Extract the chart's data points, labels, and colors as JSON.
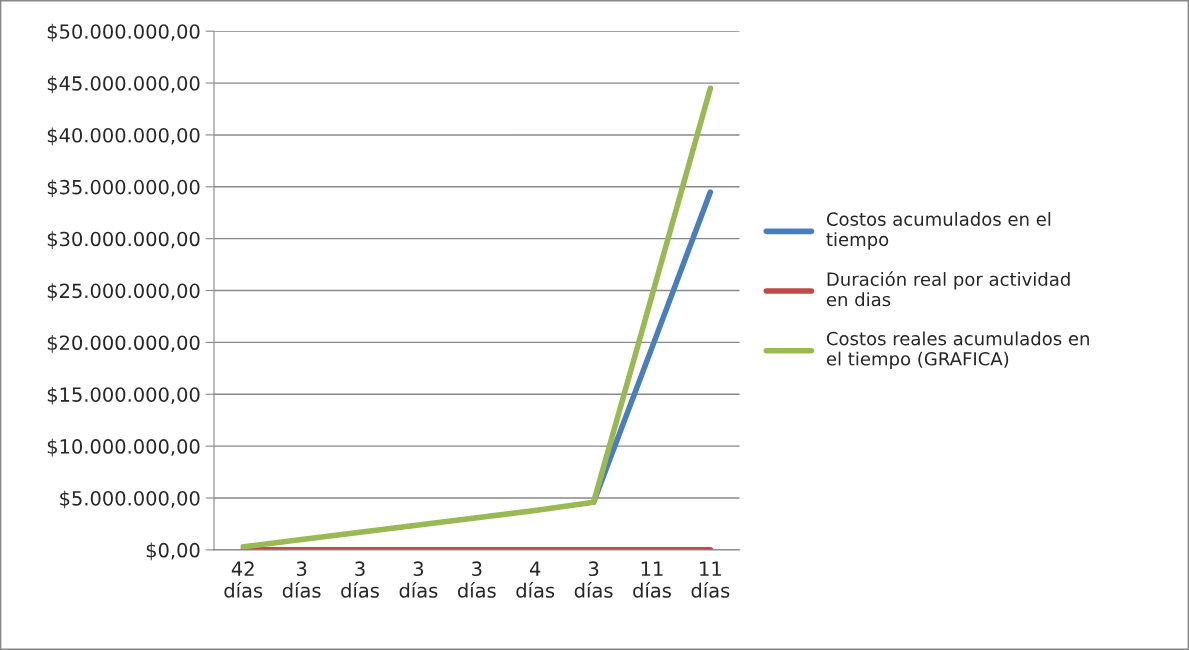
{
  "chart_data": {
    "type": "line",
    "categories": [
      "42 días",
      "3 días",
      "3 días",
      "3 días",
      "3 días",
      "4 días",
      "3 días",
      "11 días",
      "11 días"
    ],
    "series": [
      {
        "name": "Costos acumulados en el tiempo",
        "color": "#4a7ebb",
        "values": [
          null,
          null,
          null,
          null,
          null,
          null,
          4600000,
          19500000,
          34500000
        ]
      },
      {
        "name": "Duración real por actividad en dias",
        "color": "#be4b48",
        "values": [
          0,
          0,
          0,
          0,
          0,
          0,
          0,
          0,
          0
        ]
      },
      {
        "name": "Costos reales acumulados en el tiempo (GRAFICA)",
        "color": "#98b954",
        "values": [
          300000,
          1000000,
          1700000,
          2400000,
          3100000,
          3800000,
          4600000,
          24500000,
          44500000
        ]
      }
    ],
    "ylim": [
      0,
      50000000
    ],
    "yticks": [
      {
        "value": 0,
        "label": "$0,00"
      },
      {
        "value": 5000000,
        "label": "$5.000.000,00"
      },
      {
        "value": 10000000,
        "label": "$10.000.000,00"
      },
      {
        "value": 15000000,
        "label": "$15.000.000,00"
      },
      {
        "value": 20000000,
        "label": "$20.000.000,00"
      },
      {
        "value": 25000000,
        "label": "$25.000.000,00"
      },
      {
        "value": 30000000,
        "label": "$30.000.000,00"
      },
      {
        "value": 35000000,
        "label": "$35.000.000,00"
      },
      {
        "value": 40000000,
        "label": "$40.000.000,00"
      },
      {
        "value": 45000000,
        "label": "$45.000.000,00"
      },
      {
        "value": 50000000,
        "label": "$50.000.000,00"
      }
    ],
    "grid": "y",
    "legend": "right",
    "marker": "none",
    "line_style": "solid"
  }
}
